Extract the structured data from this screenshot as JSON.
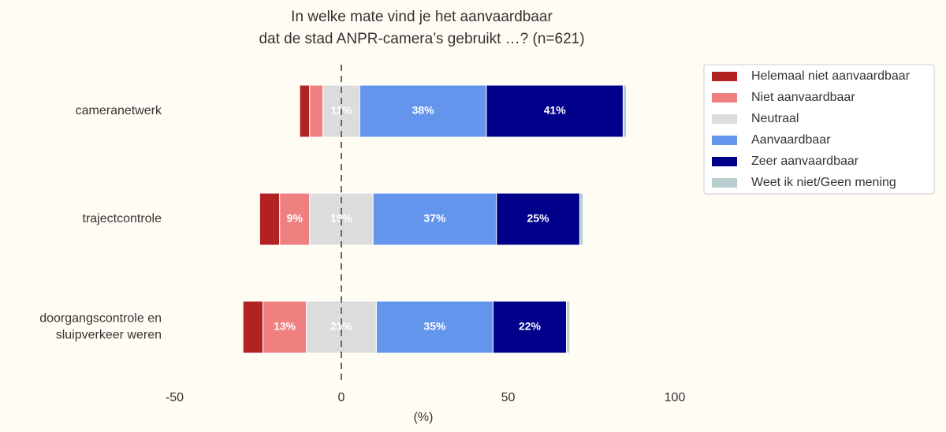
{
  "chart_data": {
    "type": "diverging_bar",
    "title": "In welke mate vind je het aanvaardbaar\ndat de stad ANPR-camera’s gebruikt …? (n=621)",
    "x_label": "(%)",
    "categories": [
      "cameranetwerk",
      "trajectcontrole",
      "doorgangscontrole en\nsluipverkeer weren"
    ],
    "series": [
      {
        "name": "Helemaal niet aanvaardbaar",
        "color": "#b22222",
        "values": [
          3,
          6,
          6
        ],
        "value_labels": [
          null,
          null,
          null
        ]
      },
      {
        "name": "Niet aanvaardbaar",
        "color": "#f08080",
        "values": [
          4,
          9,
          13
        ],
        "value_labels": [
          null,
          "9%",
          "13%"
        ]
      },
      {
        "name": "Neutraal",
        "color": "#dcdcdc",
        "values": [
          11,
          19,
          21
        ],
        "value_labels": [
          "11%",
          "19%",
          "21%"
        ]
      },
      {
        "name": "Aanvaardbaar",
        "color": "#6495ed",
        "values": [
          38,
          37,
          35
        ],
        "value_labels": [
          "38%",
          "37%",
          "35%"
        ]
      },
      {
        "name": "Zeer aanvaardbaar",
        "color": "#00008b",
        "values": [
          41,
          25,
          22
        ],
        "value_labels": [
          "41%",
          "25%",
          "22%"
        ]
      },
      {
        "name": "Weet ik niet/Geen mening",
        "color": "#b8cece",
        "values": [
          1,
          1,
          1
        ],
        "value_labels": [
          null,
          null,
          null
        ]
      }
    ],
    "xlim": [
      -50,
      100
    ],
    "xticks": [
      -50,
      0,
      50,
      100
    ],
    "legend": "upper right"
  }
}
